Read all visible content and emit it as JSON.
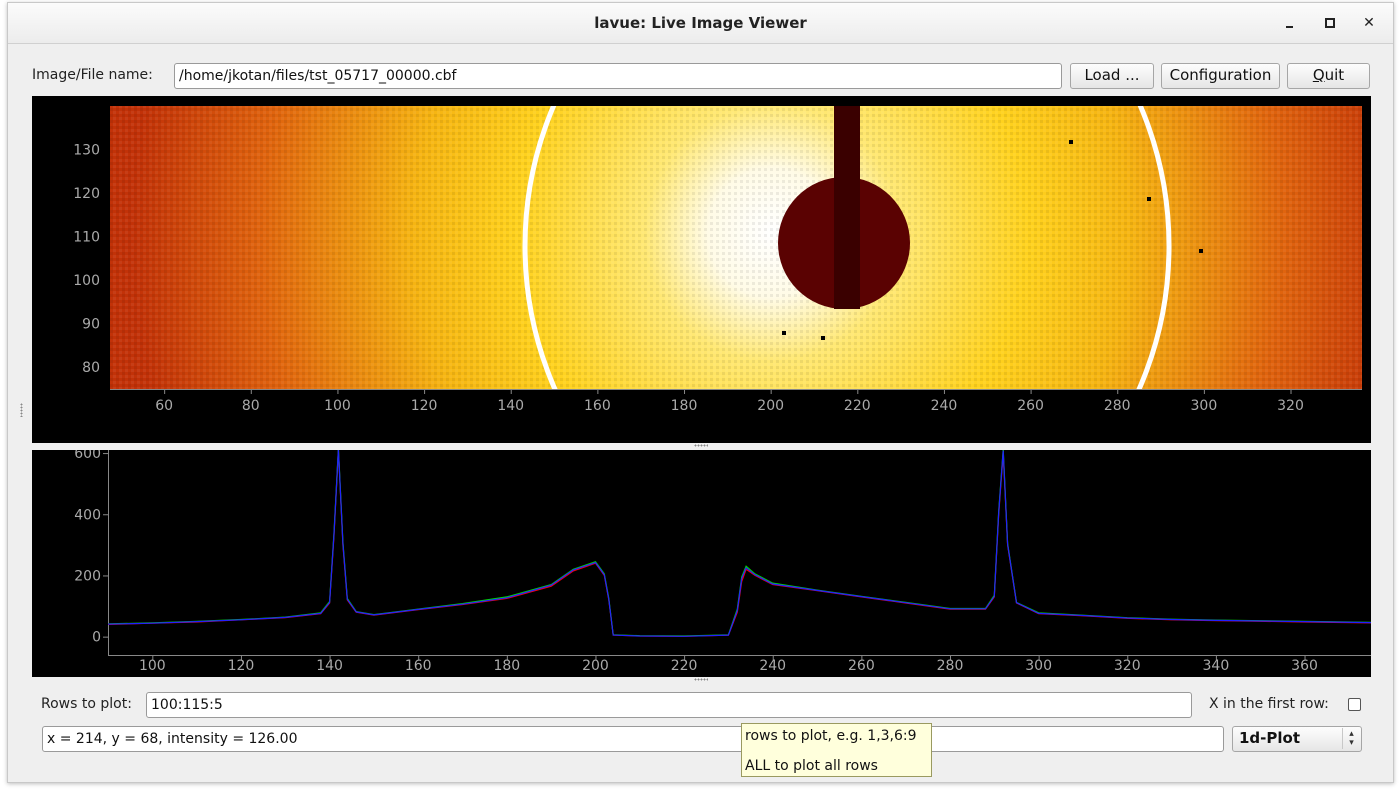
{
  "window": {
    "title": "lavue: Live Image Viewer"
  },
  "file": {
    "label": "Image/File name:",
    "value": "/home/jkotan/files/tst_05717_00000.cbf"
  },
  "buttons": {
    "load": "Load ...",
    "configuration": "Configuration",
    "quit_prefix": "",
    "quit_underlined": "Q",
    "quit_rest": "uit"
  },
  "image_view": {
    "y_ticks": [
      "130",
      "120",
      "110",
      "100",
      "90",
      "80"
    ],
    "x_ticks": [
      "60",
      "80",
      "100",
      "120",
      "140",
      "160",
      "180",
      "200",
      "220",
      "240",
      "260",
      "280",
      "300",
      "320"
    ]
  },
  "chart_data": {
    "type": "line",
    "x_ticks": [
      "100",
      "120",
      "140",
      "160",
      "180",
      "200",
      "220",
      "240",
      "260",
      "280",
      "300",
      "320",
      "340",
      "360"
    ],
    "y_ticks": [
      "600",
      "400",
      "200",
      "0"
    ],
    "xlim": [
      90,
      375
    ],
    "ylim": [
      -60,
      610
    ],
    "x": [
      90,
      100,
      110,
      120,
      130,
      138,
      140,
      141,
      142,
      143,
      144,
      146,
      150,
      160,
      170,
      180,
      190,
      195,
      200,
      202,
      203,
      204,
      210,
      220,
      230,
      232,
      233,
      234,
      236,
      240,
      250,
      260,
      270,
      280,
      288,
      290,
      291,
      292,
      293,
      295,
      300,
      310,
      320,
      330,
      340,
      350,
      360,
      375
    ],
    "series": [
      {
        "color": "#ff0000",
        "values": [
          40,
          44,
          48,
          55,
          62,
          75,
          110,
          330,
          610,
          300,
          120,
          80,
          70,
          88,
          105,
          125,
          165,
          215,
          240,
          200,
          120,
          5,
          2,
          1,
          5,
          80,
          180,
          220,
          200,
          170,
          150,
          130,
          110,
          90,
          90,
          130,
          400,
          600,
          300,
          110,
          75,
          68,
          60,
          55,
          52,
          50,
          48,
          45
        ]
      },
      {
        "color": "#00dd00",
        "values": [
          42,
          45,
          50,
          56,
          64,
          78,
          115,
          340,
          615,
          310,
          125,
          82,
          72,
          90,
          108,
          130,
          170,
          220,
          245,
          205,
          125,
          6,
          3,
          2,
          6,
          90,
          195,
          230,
          205,
          175,
          152,
          132,
          112,
          92,
          92,
          135,
          410,
          612,
          305,
          112,
          78,
          70,
          62,
          57,
          54,
          52,
          50,
          47
        ]
      },
      {
        "color": "#2020ff",
        "values": [
          41,
          44,
          49,
          55,
          63,
          76,
          112,
          335,
          612,
          305,
          122,
          81,
          71,
          89,
          106,
          127,
          168,
          218,
          242,
          202,
          122,
          5,
          2,
          1,
          5,
          85,
          190,
          225,
          202,
          172,
          151,
          131,
          111,
          91,
          91,
          132,
          405,
          608,
          302,
          111,
          76,
          69,
          61,
          56,
          53,
          51,
          49,
          46
        ]
      }
    ]
  },
  "rows": {
    "label": "Rows to plot:",
    "value": "100:115:5"
  },
  "xfirst": {
    "label": "X in the first row:"
  },
  "status": {
    "value": "x = 214, y = 68, intensity = 126.00"
  },
  "plot_mode": {
    "value": "1d-Plot"
  },
  "tooltip": {
    "line1": "rows to plot, e.g. 1,3,6:9",
    "line2": "ALL to plot all rows"
  }
}
